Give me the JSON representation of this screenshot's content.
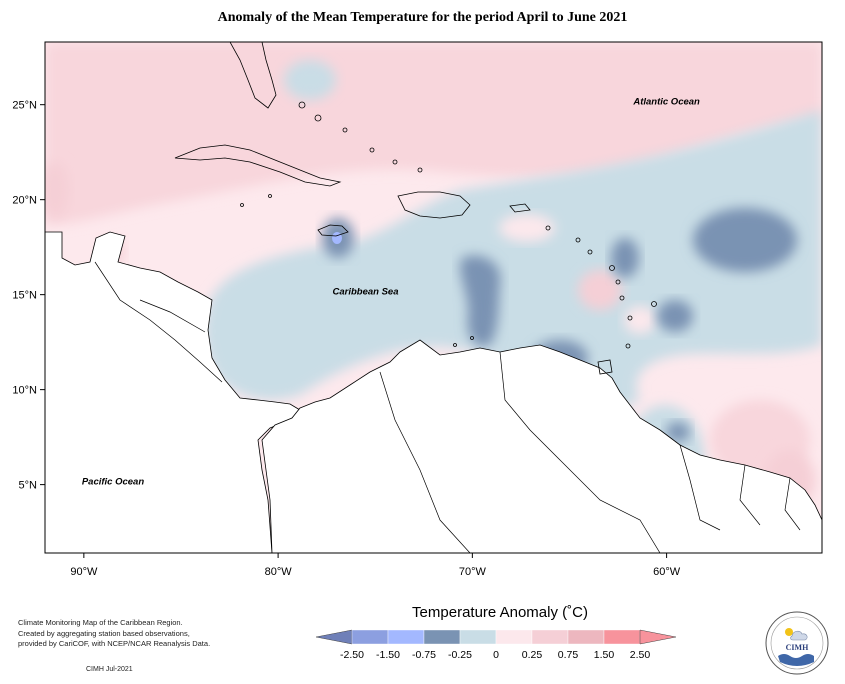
{
  "title": "Anomaly of the Mean Temperature for the period April to June 2021",
  "map": {
    "lat_ticks": [
      {
        "lat": 25,
        "label": "25°N"
      },
      {
        "lat": 20,
        "label": "20°N"
      },
      {
        "lat": 15,
        "label": "15°N"
      },
      {
        "lat": 10,
        "label": "10°N"
      },
      {
        "lat": 5,
        "label": "5°N"
      }
    ],
    "lon_ticks": [
      {
        "lon": -90,
        "label": "90°W"
      },
      {
        "lon": -80,
        "label": "80°W"
      },
      {
        "lon": -70,
        "label": "70°W"
      },
      {
        "lon": -60,
        "label": "60°W"
      }
    ],
    "places": [
      {
        "name": "Atlantic Ocean",
        "lon": -60,
        "lat": 25
      },
      {
        "name": "Caribbean Sea",
        "lon": -75.5,
        "lat": 15
      },
      {
        "name": "Pacific Ocean",
        "lon": -88.5,
        "lat": 5
      }
    ]
  },
  "legend": {
    "title": "Temperature Anomaly (˚C)",
    "ticks": [
      "-2.50",
      "-1.50",
      "-0.75",
      "-0.25",
      "0",
      "0.25",
      "0.75",
      "1.50",
      "2.50"
    ],
    "colors": [
      "#6f80b8",
      "#8c9fe0",
      "#a3b8ff",
      "#7a93b3",
      "#c9dde6",
      "#fce8ec",
      "#f5cfd6",
      "#edb7bf",
      "#f7939c",
      "#f7939c"
    ]
  },
  "credit": {
    "line1": "Climate Monitoring Map of the Caribbean Region.",
    "line2": "Created by aggregating station based observations,",
    "line3": "provided by CariCOF, with NCEP/NCAR Reanalysis Data.",
    "stamp": "CIMH Jul-2021"
  },
  "logo": {
    "text": "CIMH"
  }
}
